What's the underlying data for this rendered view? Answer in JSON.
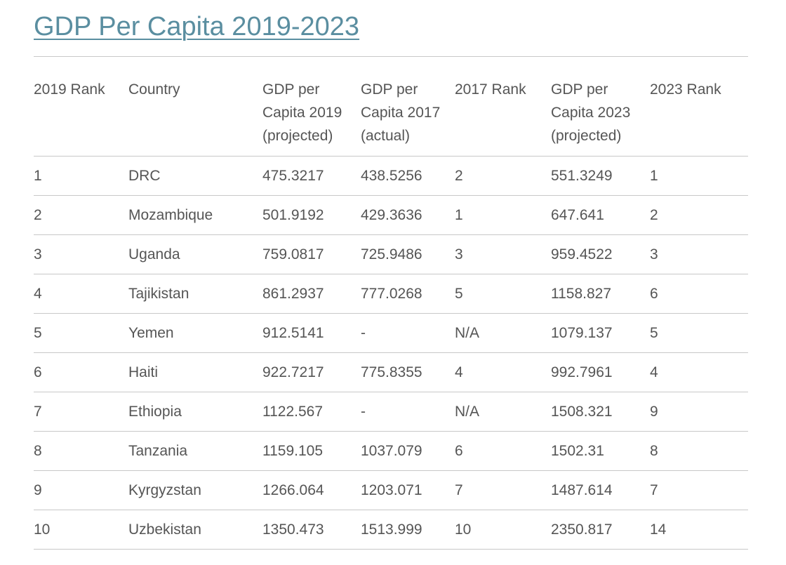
{
  "title": "GDP Per Capita 2019-2023",
  "table": {
    "headers": [
      "2019 Rank",
      "Country",
      "GDP per Capita 2019 (projected)",
      "GDP per Capita 2017 (actual)",
      "2017 Rank",
      "GDP per Capita 2023 (projected)",
      "2023 Rank"
    ],
    "rows": [
      [
        "1",
        "DRC",
        "475.3217",
        "438.5256",
        "2",
        "551.3249",
        "1"
      ],
      [
        "2",
        "Mozambique",
        "501.9192",
        "429.3636",
        "1",
        "647.641",
        "2"
      ],
      [
        "3",
        "Uganda",
        "759.0817",
        "725.9486",
        "3",
        "959.4522",
        "3"
      ],
      [
        "4",
        "Tajikistan",
        "861.2937",
        "777.0268",
        "5",
        "1158.827",
        "6"
      ],
      [
        "5",
        "Yemen",
        "912.5141",
        "-",
        "N/A",
        "1079.137",
        "5"
      ],
      [
        "6",
        "Haiti",
        "922.7217",
        "775.8355",
        "4",
        "992.7961",
        "4"
      ],
      [
        "7",
        "Ethiopia",
        "1122.567",
        "-",
        "N/A",
        "1508.321",
        "9"
      ],
      [
        "8",
        "Tanzania",
        "1159.105",
        "1037.079",
        "6",
        "1502.31",
        "8"
      ],
      [
        "9",
        "Kyrgyzstan",
        "1266.064",
        "1203.071",
        "7",
        "1487.614",
        "7"
      ],
      [
        "10",
        "Uzbekistan",
        "1350.473",
        "1513.999",
        "10",
        "2350.817",
        "14"
      ]
    ]
  }
}
